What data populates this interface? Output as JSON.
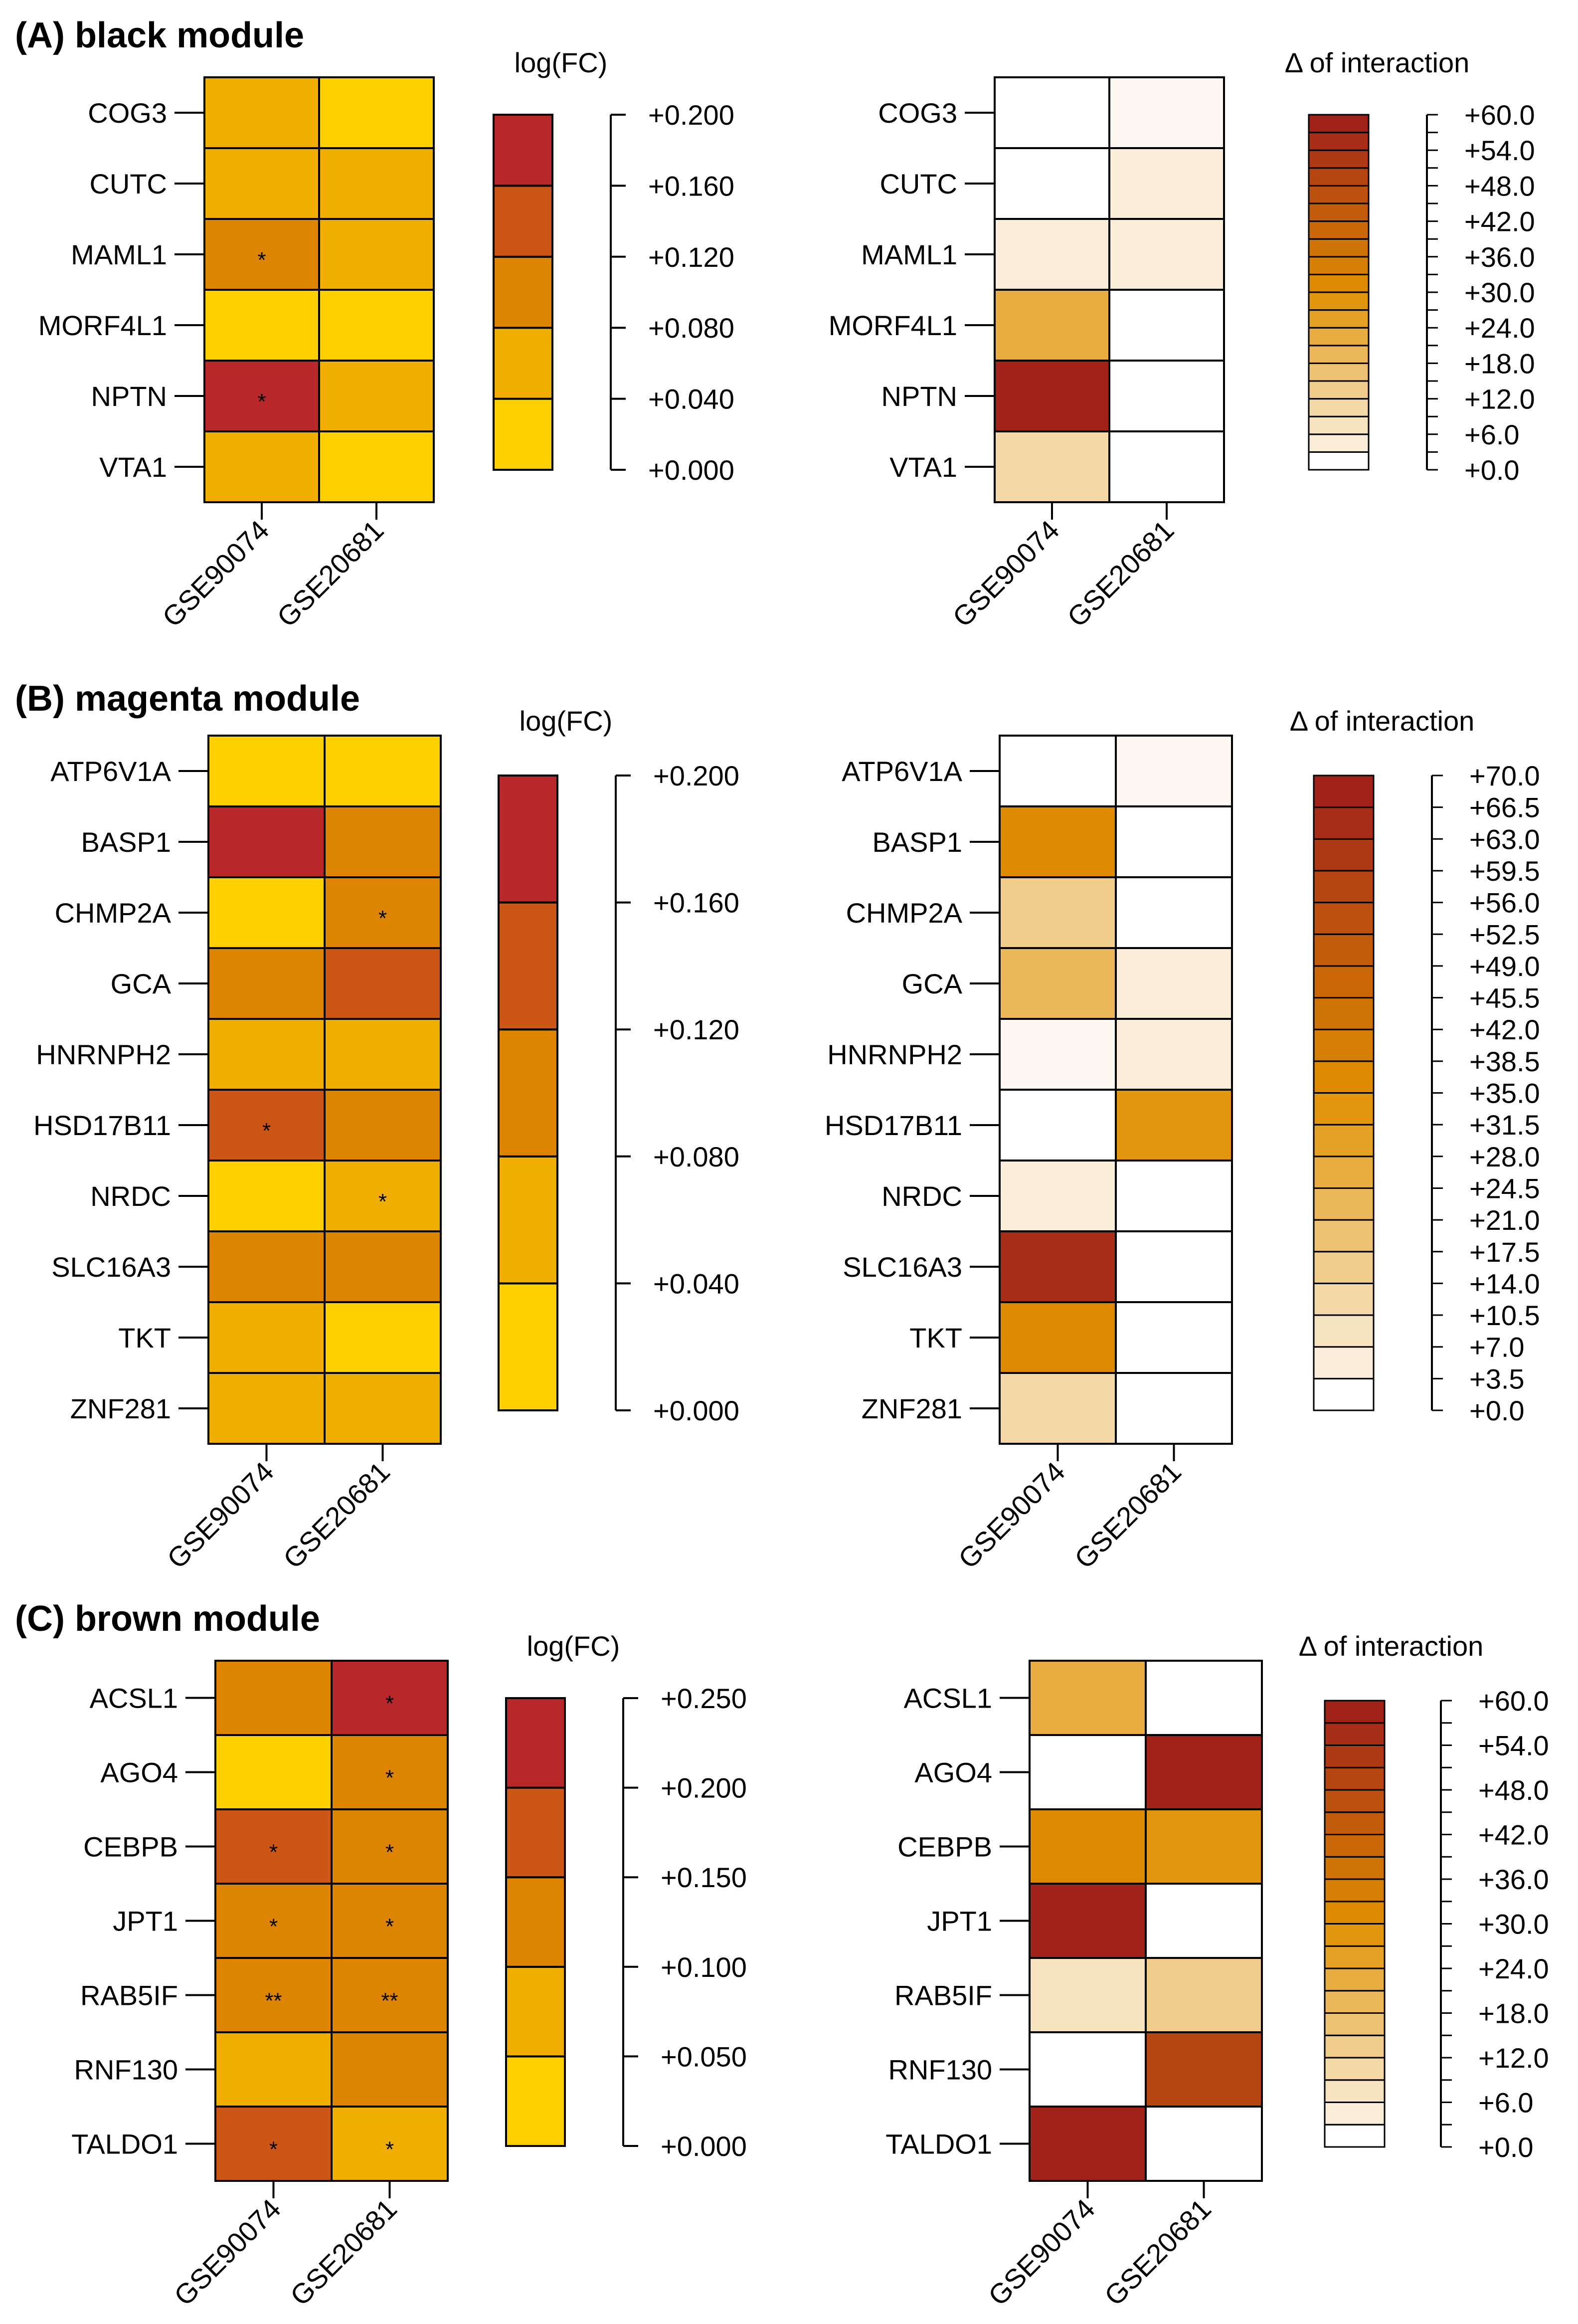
{
  "colors": {
    "logfc_scale": [
      "#FFD000",
      "#F0AF00",
      "#DD8400",
      "#CC5616",
      "#B8282A"
    ],
    "interaction_high": "#9E1C1A",
    "interaction_mid": "#E09000",
    "interaction_low": "#FFFFFF",
    "stroke": "#000000"
  },
  "chart_data": [
    {
      "type": "heatmap",
      "panel_title": "(A) black module",
      "x": [
        "GSE90074",
        "GSE20681"
      ],
      "rows": [
        "COG3",
        "CUTC",
        "MAML1",
        "MORF4L1",
        "NPTN",
        "VTA1"
      ],
      "fc": {
        "title": "log(FC)",
        "ticks": [
          "+0.200",
          "+0.160",
          "+0.120",
          "+0.080",
          "+0.040",
          "+0.000"
        ],
        "range": [
          0,
          0.2
        ],
        "bins": 5,
        "values": [
          [
            0.05,
            0.01
          ],
          [
            0.05,
            0.05
          ],
          [
            0.09,
            0.05
          ],
          [
            0.01,
            0.01
          ],
          [
            0.19,
            0.05
          ],
          [
            0.05,
            0.01
          ]
        ],
        "stars": [
          [
            "",
            ""
          ],
          [
            "",
            ""
          ],
          [
            "*",
            ""
          ],
          [
            "",
            ""
          ],
          [
            "*",
            ""
          ],
          [
            "",
            ""
          ]
        ]
      },
      "interaction": {
        "title": "Δ of interaction",
        "ticks": [
          "+60.0",
          "+54.0",
          "+48.0",
          "+42.0",
          "+36.0",
          "+30.0",
          "+24.0",
          "+18.0",
          "+12.0",
          "+6.0",
          "+0.0"
        ],
        "range": [
          0,
          60
        ],
        "bins": 20,
        "values": [
          [
            0,
            2
          ],
          [
            0,
            5
          ],
          [
            3,
            3
          ],
          [
            22,
            0
          ],
          [
            59,
            0
          ],
          [
            10,
            0
          ]
        ]
      }
    },
    {
      "type": "heatmap",
      "panel_title": "(B) magenta module",
      "x": [
        "GSE90074",
        "GSE20681"
      ],
      "rows": [
        "ATP6V1A",
        "BASP1",
        "CHMP2A",
        "GCA",
        "HNRNPH2",
        "HSD17B11",
        "NRDC",
        "SLC16A3",
        "TKT",
        "ZNF281"
      ],
      "fc": {
        "title": "log(FC)",
        "ticks": [
          "+0.200",
          "+0.160",
          "+0.120",
          "+0.080",
          "+0.040",
          "+0.000"
        ],
        "range": [
          0,
          0.2
        ],
        "bins": 5,
        "values": [
          [
            0.01,
            0.01
          ],
          [
            0.18,
            0.1
          ],
          [
            0.01,
            0.1
          ],
          [
            0.1,
            0.14
          ],
          [
            0.06,
            0.06
          ],
          [
            0.14,
            0.1
          ],
          [
            0.01,
            0.06
          ],
          [
            0.1,
            0.1
          ],
          [
            0.06,
            0.01
          ],
          [
            0.06,
            0.06
          ]
        ],
        "stars": [
          [
            "",
            ""
          ],
          [
            "",
            ""
          ],
          [
            "",
            "*"
          ],
          [
            "",
            ""
          ],
          [
            "",
            ""
          ],
          [
            "*",
            ""
          ],
          [
            "",
            "*"
          ],
          [
            "",
            ""
          ],
          [
            "",
            ""
          ],
          [
            "",
            ""
          ]
        ]
      },
      "interaction": {
        "title": "Δ of interaction",
        "ticks": [
          "+70.0",
          "+66.5",
          "+63.0",
          "+59.5",
          "+56.0",
          "+52.5",
          "+49.0",
          "+45.5",
          "+42.0",
          "+38.5",
          "+35.0",
          "+31.5",
          "+28.0",
          "+24.5",
          "+21.0",
          "+17.5",
          "+14.0",
          "+10.5",
          "+7.0",
          "+3.5",
          "+0.0"
        ],
        "range": [
          0,
          70
        ],
        "bins": 20,
        "values": [
          [
            0,
            3
          ],
          [
            36,
            0
          ],
          [
            15,
            0
          ],
          [
            24,
            5
          ],
          [
            3,
            5
          ],
          [
            0,
            32
          ],
          [
            5,
            0
          ],
          [
            65,
            0
          ],
          [
            36,
            0
          ],
          [
            12,
            0
          ]
        ]
      }
    },
    {
      "type": "heatmap",
      "panel_title": "(C) brown module",
      "x": [
        "GSE90074",
        "GSE20681"
      ],
      "rows": [
        "ACSL1",
        "AGO4",
        "CEBPB",
        "JPT1",
        "RAB5IF",
        "RNF130",
        "TALDO1"
      ],
      "fc": {
        "title": "log(FC)",
        "ticks": [
          "+0.250",
          "+0.200",
          "+0.150",
          "+0.100",
          "+0.050",
          "+0.000"
        ],
        "range": [
          0,
          0.25
        ],
        "bins": 5,
        "values": [
          [
            0.12,
            0.23
          ],
          [
            0.02,
            0.12
          ],
          [
            0.17,
            0.12
          ],
          [
            0.12,
            0.12
          ],
          [
            0.12,
            0.12
          ],
          [
            0.07,
            0.12
          ],
          [
            0.17,
            0.07
          ]
        ],
        "stars": [
          [
            "",
            "*"
          ],
          [
            "",
            "*"
          ],
          [
            "*",
            "*"
          ],
          [
            "*",
            "*"
          ],
          [
            "**",
            "**"
          ],
          [
            "",
            ""
          ],
          [
            "*",
            "*"
          ]
        ]
      },
      "interaction": {
        "title": "Δ of interaction",
        "ticks": [
          "+60.0",
          "+54.0",
          "+48.0",
          "+42.0",
          "+36.0",
          "+30.0",
          "+24.0",
          "+18.0",
          "+12.0",
          "+6.0",
          "+0.0"
        ],
        "range": [
          0,
          60
        ],
        "bins": 20,
        "values": [
          [
            22,
            0
          ],
          [
            0,
            57
          ],
          [
            31,
            27
          ],
          [
            57,
            0
          ],
          [
            6,
            12
          ],
          [
            0,
            50
          ],
          [
            57,
            0
          ]
        ]
      }
    }
  ]
}
